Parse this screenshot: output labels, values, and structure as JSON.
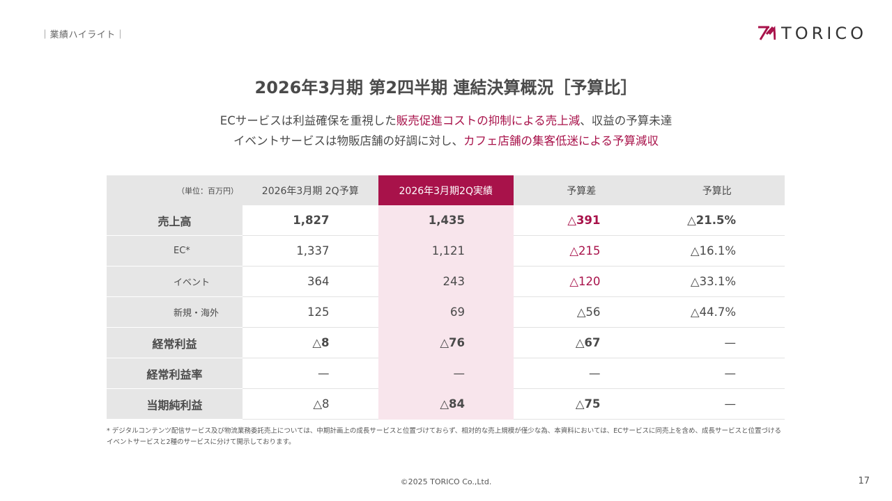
{
  "header": {
    "section_label": "｜業績ハイライト｜",
    "logo_text": "TORICO"
  },
  "title": "2026年3月期 第2四半期 連結決算概況［予算比］",
  "subtitle": {
    "line1_pre": "ECサービスは利益確保を重視した",
    "line1_hl": "販売促進コストの抑制による売上減",
    "line1_post": "、収益の予算未達",
    "line2_pre": "イベントサービスは物販店舗の好調に対し、",
    "line2_hl": "カフェ店舗の集客低迷による予算減収"
  },
  "table": {
    "unit": "（単位：百万円）",
    "columns": [
      "2026年3月期 2Q予算",
      "2026年3月期2Q実績",
      "予算差",
      "予算比"
    ],
    "rows": [
      {
        "label": "売上高",
        "budget": "1,827",
        "actual": "1,435",
        "diff": "△391",
        "ratio": "△21.5%"
      },
      {
        "label": "EC*",
        "budget": "1,337",
        "actual": "1,121",
        "diff": "△215",
        "ratio": "△16.1%"
      },
      {
        "label": "イベント",
        "budget": "364",
        "actual": "243",
        "diff": "△120",
        "ratio": "△33.1%"
      },
      {
        "label": "新規・海外",
        "budget": "125",
        "actual": "69",
        "diff": "△56",
        "ratio": "△44.7%"
      },
      {
        "label": "経常利益",
        "budget": "△8",
        "actual": "△76",
        "diff": "△67",
        "ratio": "—"
      },
      {
        "label": "経常利益率",
        "budget": "—",
        "actual": "—",
        "diff": "—",
        "ratio": "—"
      },
      {
        "label": "当期純利益",
        "budget": "△8",
        "actual": "△84",
        "diff": "△75",
        "ratio": "—"
      }
    ]
  },
  "footnote": "* デジタルコンテンツ配信サービス及び物流業務委託売上については、中期計画上の成長サービスと位置づけておらず、相対的な売上規模が僅少な為、本資料においては、ECサービスに同売上を含め、成長サービスと位置づけるイベントサービスと2種のサービスに分けて開示しております。",
  "copyright": "©2025 TORICO Co.,Ltd.",
  "page_number": "17",
  "colors": {
    "accent": "#a8124a",
    "highlight_bg": "#f8e5ec",
    "header_bg": "#e6e6e6"
  },
  "icons": {
    "logo_mark": "torico-logo-icon"
  }
}
